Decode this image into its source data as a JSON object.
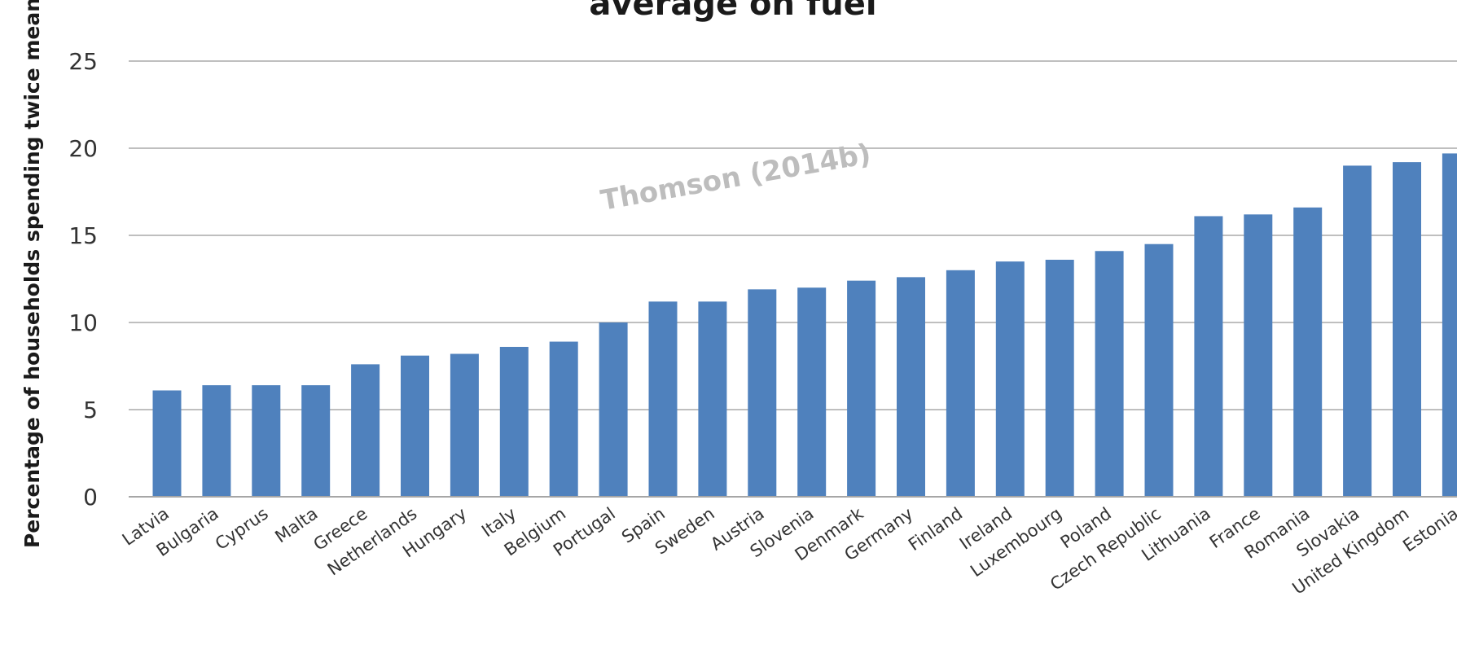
{
  "chart_data": {
    "type": "bar",
    "title": "average on fuel",
    "ylabel": "Percentage of households spending twice mean",
    "watermark": "Thomson (2014b)",
    "ylim": [
      0,
      25
    ],
    "yticks": [
      "0",
      "5",
      "10",
      "15",
      "20",
      "25"
    ],
    "grid": true,
    "bar_color": "#4f81bd",
    "categories": [
      "Latvia",
      "Bulgaria",
      "Cyprus",
      "Malta",
      "Greece",
      "Netherlands",
      "Hungary",
      "Italy",
      "Belgium",
      "Portugal",
      "Spain",
      "Sweden",
      "Austria",
      "Slovenia",
      "Denmark",
      "Germany",
      "Finland",
      "Ireland",
      "Luxembourg",
      "Poland",
      "Czech Republic",
      "Lithuania",
      "France",
      "Romania",
      "Slovakia",
      "United Kingdom",
      "Estonia"
    ],
    "values": [
      6.1,
      6.4,
      6.4,
      6.4,
      7.6,
      8.1,
      8.2,
      8.6,
      8.9,
      10.0,
      11.2,
      11.2,
      11.9,
      12.0,
      12.4,
      12.6,
      13.0,
      13.5,
      13.6,
      14.1,
      14.5,
      16.1,
      16.2,
      16.6,
      19.0,
      19.2,
      19.7
    ]
  }
}
